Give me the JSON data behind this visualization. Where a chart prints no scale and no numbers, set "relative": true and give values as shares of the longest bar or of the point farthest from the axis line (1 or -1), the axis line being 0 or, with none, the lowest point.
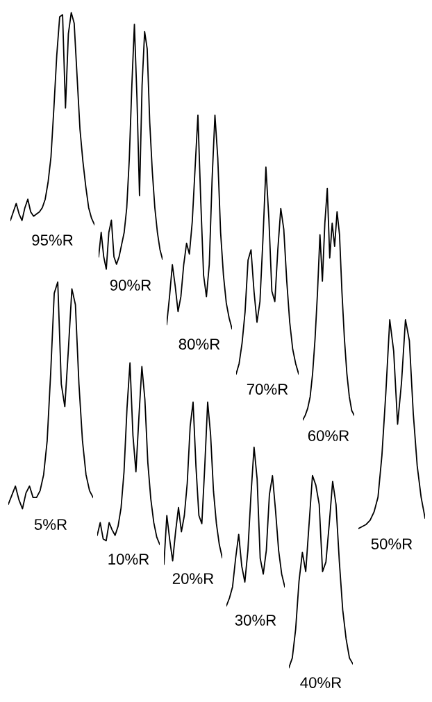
{
  "chart_data": [
    {
      "type": "line",
      "relative": true,
      "color": "#000000",
      "xlabel": "95%R",
      "categories": [
        null,
        null,
        null,
        null,
        null,
        null,
        null,
        null,
        null,
        null,
        null,
        null,
        null,
        null,
        null,
        null,
        null,
        null,
        null,
        null,
        null,
        null,
        null,
        null,
        null,
        null,
        null,
        null,
        null,
        null
      ],
      "values": [
        0.02,
        0.06,
        0.1,
        0.05,
        0.02,
        0.08,
        0.12,
        0.06,
        0.04,
        0.05,
        0.06,
        0.08,
        0.12,
        0.2,
        0.32,
        0.55,
        0.8,
        0.98,
        0.99,
        0.55,
        0.9,
        1.0,
        0.95,
        0.7,
        0.45,
        0.3,
        0.18,
        0.08,
        0.03,
        0.0
      ]
    },
    {
      "type": "line",
      "relative": true,
      "color": "#000000",
      "xlabel": "90%R",
      "categories": [
        null,
        null,
        null,
        null,
        null,
        null,
        null,
        null,
        null,
        null,
        null,
        null,
        null,
        null,
        null,
        null,
        null,
        null,
        null,
        null,
        null,
        null,
        null,
        null,
        null,
        null
      ],
      "values": [
        0.05,
        0.15,
        0.05,
        0.0,
        0.15,
        0.2,
        0.05,
        0.02,
        0.05,
        0.1,
        0.15,
        0.25,
        0.45,
        0.75,
        1.0,
        0.7,
        0.3,
        0.75,
        0.97,
        0.9,
        0.6,
        0.4,
        0.25,
        0.15,
        0.08,
        0.04
      ]
    },
    {
      "type": "line",
      "relative": true,
      "color": "#000000",
      "xlabel": "80%R",
      "categories": [
        null,
        null,
        null,
        null,
        null,
        null,
        null,
        null,
        null,
        null,
        null,
        null,
        null,
        null,
        null,
        null,
        null,
        null,
        null,
        null,
        null,
        null,
        null,
        null
      ],
      "values": [
        0.02,
        0.15,
        0.3,
        0.2,
        0.08,
        0.15,
        0.3,
        0.4,
        0.35,
        0.5,
        0.75,
        1.0,
        0.6,
        0.25,
        0.15,
        0.3,
        0.7,
        1.0,
        0.8,
        0.45,
        0.25,
        0.12,
        0.05,
        0.0
      ]
    },
    {
      "type": "line",
      "relative": true,
      "color": "#000000",
      "xlabel": "70%R",
      "categories": [
        null,
        null,
        null,
        null,
        null,
        null,
        null,
        null,
        null,
        null,
        null,
        null,
        null,
        null,
        null,
        null,
        null,
        null,
        null,
        null,
        null,
        null
      ],
      "values": [
        0.0,
        0.05,
        0.15,
        0.3,
        0.55,
        0.6,
        0.4,
        0.25,
        0.35,
        0.65,
        1.0,
        0.75,
        0.4,
        0.35,
        0.6,
        0.8,
        0.7,
        0.45,
        0.25,
        0.12,
        0.05,
        0.0
      ]
    },
    {
      "type": "line",
      "relative": true,
      "color": "#000000",
      "xlabel": "60%R",
      "categories": [
        null,
        null,
        null,
        null,
        null,
        null,
        null,
        null,
        null,
        null,
        null,
        null,
        null,
        null,
        null,
        null,
        null,
        null,
        null,
        null,
        null,
        null
      ],
      "values": [
        0.0,
        0.02,
        0.05,
        0.1,
        0.2,
        0.35,
        0.55,
        0.8,
        0.6,
        0.85,
        1.0,
        0.7,
        0.85,
        0.75,
        0.9,
        0.8,
        0.55,
        0.35,
        0.2,
        0.1,
        0.04,
        0.02
      ]
    },
    {
      "type": "line",
      "relative": true,
      "color": "#000000",
      "xlabel": "5%R",
      "categories": [
        null,
        null,
        null,
        null,
        null,
        null,
        null,
        null,
        null,
        null,
        null,
        null,
        null,
        null,
        null,
        null,
        null,
        null,
        null,
        null,
        null,
        null,
        null,
        null,
        null
      ],
      "values": [
        0.02,
        0.06,
        0.1,
        0.04,
        0.0,
        0.07,
        0.1,
        0.05,
        0.05,
        0.08,
        0.15,
        0.3,
        0.6,
        0.95,
        1.0,
        0.55,
        0.45,
        0.7,
        0.97,
        0.9,
        0.55,
        0.3,
        0.15,
        0.08,
        0.05
      ]
    },
    {
      "type": "line",
      "relative": true,
      "color": "#000000",
      "xlabel": "10%R",
      "categories": [
        null,
        null,
        null,
        null,
        null,
        null,
        null,
        null,
        null,
        null,
        null,
        null,
        null,
        null,
        null,
        null,
        null,
        null,
        null,
        null,
        null,
        null
      ],
      "values": [
        0.05,
        0.12,
        0.03,
        0.02,
        0.12,
        0.08,
        0.05,
        0.1,
        0.2,
        0.4,
        0.75,
        1.0,
        0.6,
        0.4,
        0.7,
        0.98,
        0.8,
        0.45,
        0.25,
        0.12,
        0.04,
        0.0
      ]
    },
    {
      "type": "line",
      "relative": true,
      "color": "#000000",
      "xlabel": "20%R",
      "categories": [
        null,
        null,
        null,
        null,
        null,
        null,
        null,
        null,
        null,
        null,
        null,
        null,
        null,
        null,
        null,
        null,
        null,
        null,
        null,
        null,
        null
      ],
      "values": [
        0.0,
        0.3,
        0.15,
        0.02,
        0.2,
        0.35,
        0.2,
        0.3,
        0.5,
        0.85,
        1.0,
        0.6,
        0.3,
        0.25,
        0.6,
        1.0,
        0.8,
        0.45,
        0.25,
        0.12,
        0.04
      ]
    },
    {
      "type": "line",
      "relative": true,
      "color": "#000000",
      "xlabel": "30%R",
      "categories": [
        null,
        null,
        null,
        null,
        null,
        null,
        null,
        null,
        null,
        null,
        null,
        null,
        null,
        null,
        null,
        null,
        null,
        null,
        null,
        null
      ],
      "values": [
        0.0,
        0.05,
        0.12,
        0.3,
        0.45,
        0.25,
        0.15,
        0.35,
        0.7,
        1.0,
        0.8,
        0.3,
        0.2,
        0.35,
        0.7,
        0.82,
        0.6,
        0.35,
        0.2,
        0.12
      ]
    },
    {
      "type": "line",
      "relative": true,
      "color": "#000000",
      "xlabel": "40%R",
      "categories": [
        null,
        null,
        null,
        null,
        null,
        null,
        null,
        null,
        null,
        null,
        null,
        null,
        null,
        null,
        null,
        null,
        null,
        null,
        null,
        null
      ],
      "values": [
        0.0,
        0.05,
        0.2,
        0.45,
        0.6,
        0.5,
        0.75,
        1.0,
        0.95,
        0.85,
        0.5,
        0.55,
        0.75,
        0.97,
        0.85,
        0.55,
        0.3,
        0.15,
        0.05,
        0.02
      ]
    },
    {
      "type": "line",
      "relative": true,
      "color": "#000000",
      "xlabel": "50%R",
      "categories": [
        null,
        null,
        null,
        null,
        null,
        null,
        null,
        null,
        null,
        null,
        null,
        null,
        null,
        null,
        null,
        null,
        null,
        null
      ],
      "values": [
        0.0,
        0.01,
        0.02,
        0.04,
        0.08,
        0.15,
        0.35,
        0.65,
        1.0,
        0.85,
        0.5,
        0.7,
        1.0,
        0.9,
        0.55,
        0.3,
        0.15,
        0.05
      ]
    }
  ]
}
